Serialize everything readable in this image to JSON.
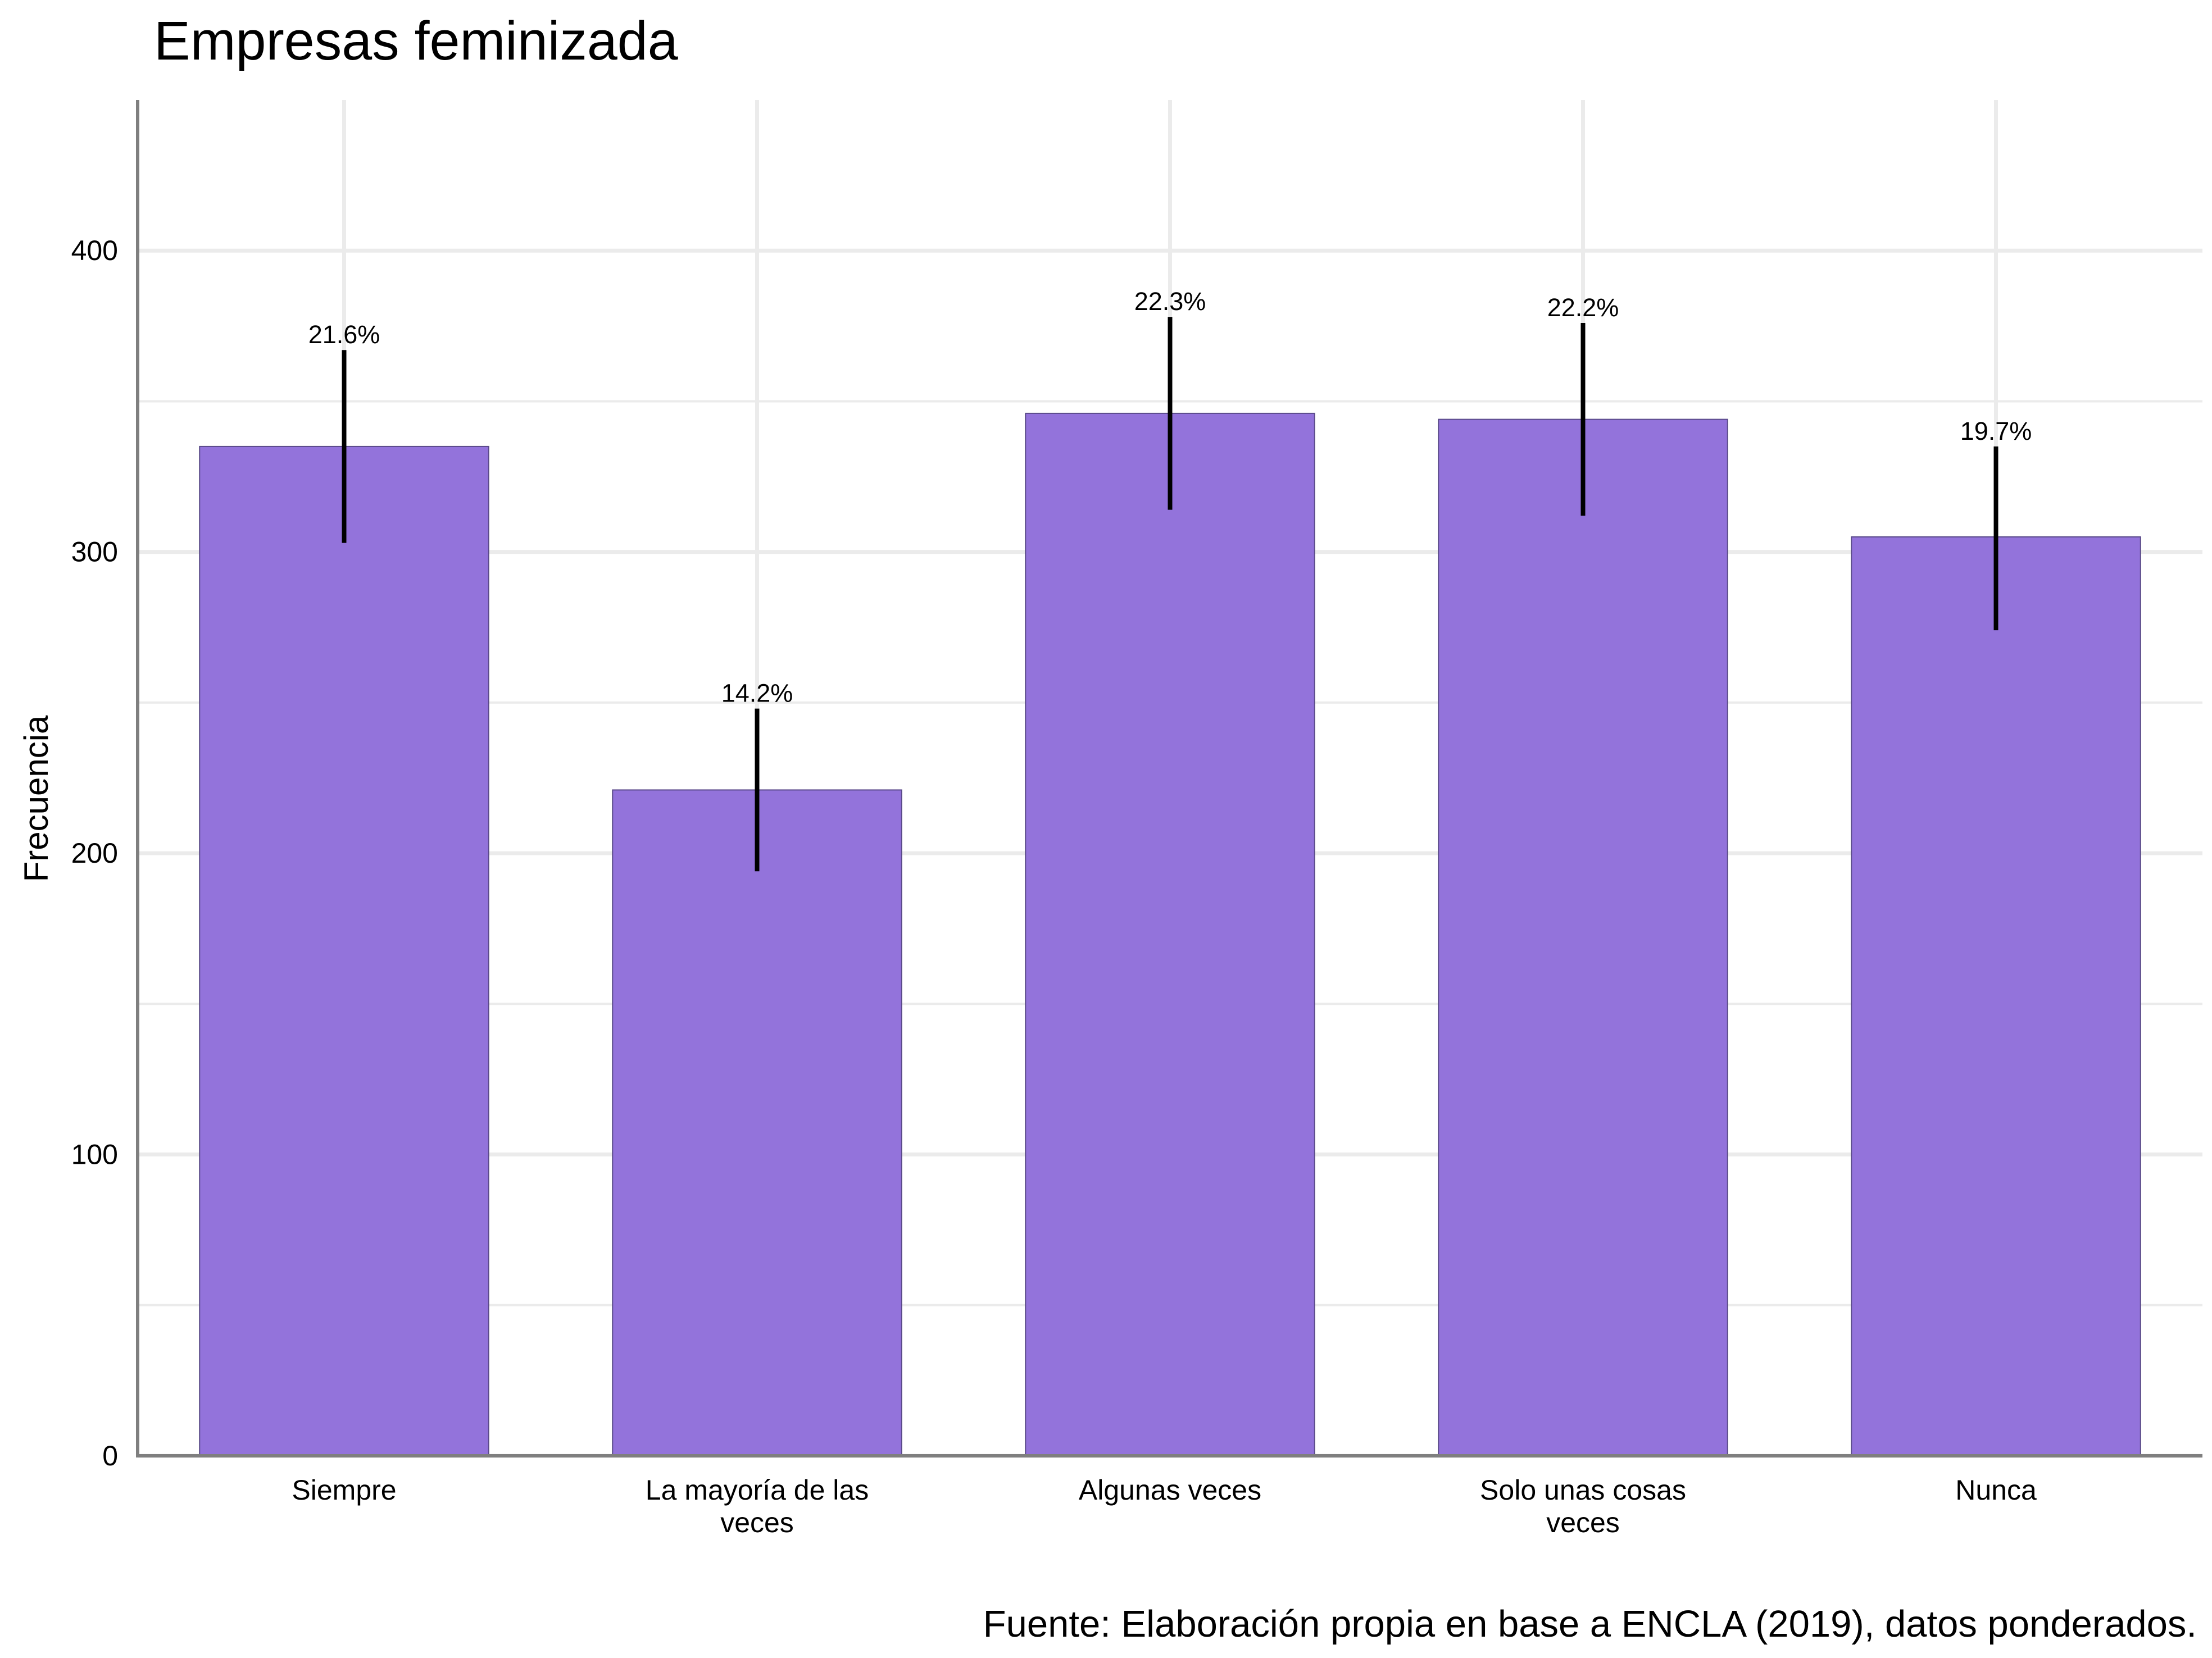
{
  "chart_data": {
    "type": "bar",
    "title": "Empresas feminizada",
    "xlabel": "",
    "ylabel": "Frecuencia",
    "caption": "Fuente: Elaboración propia en base a ENCLA (2019), datos ponderados.",
    "categories": [
      [
        "Siempre"
      ],
      [
        "La mayoría de las",
        "veces"
      ],
      [
        "Algunas veces"
      ],
      [
        "Solo unas cosas",
        "veces"
      ],
      [
        "Nunca"
      ]
    ],
    "values": [
      335,
      221,
      346,
      344,
      305
    ],
    "error_low": [
      303,
      194,
      314,
      312,
      274
    ],
    "error_high": [
      367,
      248,
      378,
      376,
      335
    ],
    "labels": [
      "21.6%",
      "14.2%",
      "22.3%",
      "22.2%",
      "19.7%"
    ],
    "ylim": [
      0,
      450
    ],
    "yticks": [
      0,
      100,
      200,
      300,
      400
    ],
    "grid": true,
    "legend": "none",
    "colors": {
      "bar_fill": "#9373DB",
      "bar_stroke": "#5A4A8A",
      "errorbar": "#000000",
      "grid": "#EBEBEB",
      "axis": "#7F7F7F"
    }
  }
}
